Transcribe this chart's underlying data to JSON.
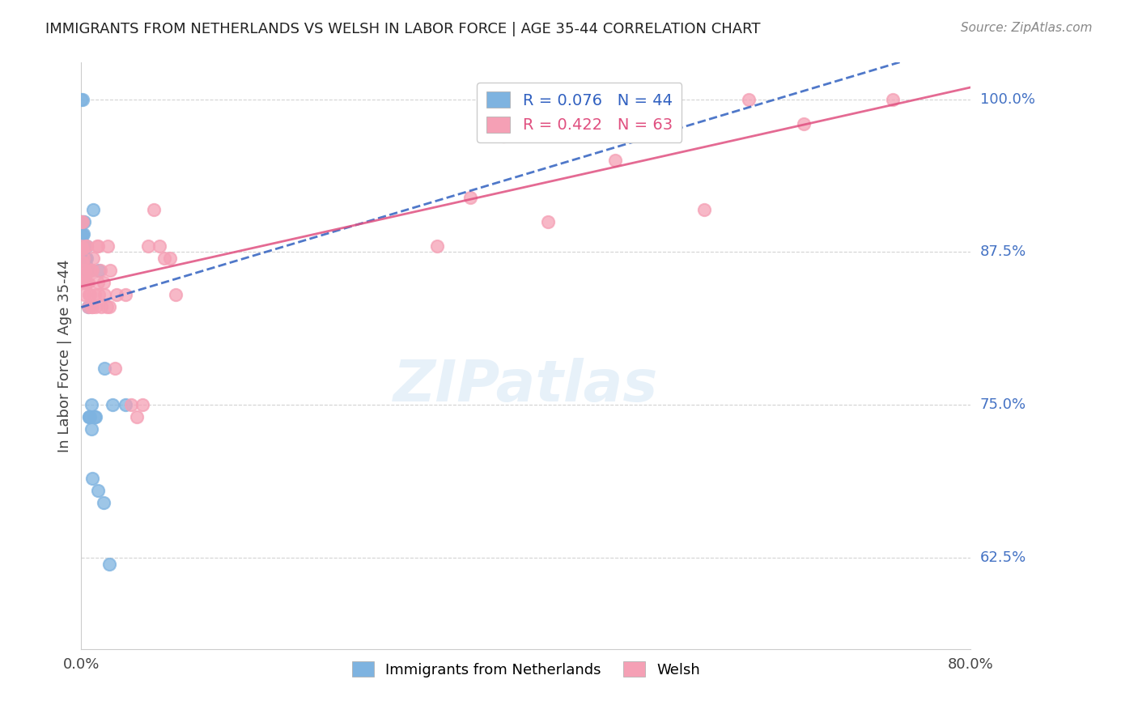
{
  "title": "IMMIGRANTS FROM NETHERLANDS VS WELSH IN LABOR FORCE | AGE 35-44 CORRELATION CHART",
  "source": "Source: ZipAtlas.com",
  "xlabel": "",
  "ylabel": "In Labor Force | Age 35-44",
  "xlim": [
    0.0,
    0.8
  ],
  "ylim": [
    0.55,
    1.03
  ],
  "yticks": [
    0.625,
    0.75,
    0.875,
    1.0
  ],
  "ytick_labels": [
    "62.5%",
    "75.0%",
    "87.5%",
    "100.0%"
  ],
  "xticks": [
    0.0,
    0.1,
    0.2,
    0.3,
    0.4,
    0.5,
    0.6,
    0.7,
    0.8
  ],
  "xtick_labels": [
    "0.0%",
    "",
    "",
    "",
    "",
    "",
    "",
    "",
    "80.0%"
  ],
  "blue_R": 0.076,
  "blue_N": 44,
  "pink_R": 0.422,
  "pink_N": 63,
  "blue_color": "#7eb3e0",
  "pink_color": "#f5a0b5",
  "blue_line_color": "#3060c0",
  "pink_line_color": "#e05080",
  "legend_blue_label": "Immigrants from Netherlands",
  "legend_pink_label": "Welsh",
  "watermark": "ZIPatlas",
  "blue_x": [
    0.0,
    0.0,
    0.0,
    0.0,
    0.0,
    0.001,
    0.001,
    0.001,
    0.001,
    0.001,
    0.001,
    0.002,
    0.002,
    0.002,
    0.002,
    0.002,
    0.003,
    0.003,
    0.003,
    0.003,
    0.004,
    0.004,
    0.004,
    0.005,
    0.005,
    0.006,
    0.006,
    0.007,
    0.007,
    0.008,
    0.009,
    0.009,
    0.01,
    0.011,
    0.012,
    0.013,
    0.015,
    0.016,
    0.02,
    0.021,
    0.025,
    0.028,
    0.04,
    0.44
  ],
  "blue_y": [
    0.867,
    0.878,
    0.889,
    0.9,
    1.0,
    0.857,
    0.867,
    0.878,
    0.889,
    0.9,
    1.0,
    0.857,
    0.867,
    0.878,
    0.88,
    0.89,
    0.86,
    0.87,
    0.88,
    0.9,
    0.85,
    0.865,
    0.87,
    0.87,
    0.88,
    0.83,
    0.86,
    0.74,
    0.74,
    0.74,
    0.73,
    0.75,
    0.69,
    0.91,
    0.74,
    0.74,
    0.68,
    0.86,
    0.67,
    0.78,
    0.62,
    0.75,
    0.75,
    1.0
  ],
  "pink_x": [
    0.0,
    0.0,
    0.0,
    0.0,
    0.0,
    0.001,
    0.001,
    0.001,
    0.001,
    0.002,
    0.002,
    0.003,
    0.003,
    0.004,
    0.004,
    0.005,
    0.005,
    0.006,
    0.006,
    0.007,
    0.007,
    0.008,
    0.009,
    0.009,
    0.01,
    0.01,
    0.011,
    0.012,
    0.013,
    0.014,
    0.015,
    0.015,
    0.016,
    0.017,
    0.018,
    0.02,
    0.021,
    0.023,
    0.024,
    0.025,
    0.026,
    0.03,
    0.032,
    0.04,
    0.045,
    0.05,
    0.055,
    0.06,
    0.065,
    0.07,
    0.075,
    0.08,
    0.085,
    0.32,
    0.35,
    0.38,
    0.42,
    0.48,
    0.52,
    0.56,
    0.6,
    0.65,
    0.73
  ],
  "pink_y": [
    0.857,
    0.867,
    0.878,
    0.9,
    0.88,
    0.857,
    0.867,
    0.878,
    0.9,
    0.85,
    0.87,
    0.84,
    0.86,
    0.85,
    0.88,
    0.85,
    0.88,
    0.83,
    0.85,
    0.84,
    0.86,
    0.84,
    0.83,
    0.86,
    0.83,
    0.86,
    0.87,
    0.84,
    0.83,
    0.88,
    0.85,
    0.88,
    0.84,
    0.86,
    0.83,
    0.85,
    0.84,
    0.83,
    0.88,
    0.83,
    0.86,
    0.78,
    0.84,
    0.84,
    0.75,
    0.74,
    0.75,
    0.88,
    0.91,
    0.88,
    0.87,
    0.87,
    0.84,
    0.88,
    0.92,
    0.97,
    0.9,
    0.95,
    1.0,
    0.91,
    1.0,
    0.98,
    1.0
  ]
}
